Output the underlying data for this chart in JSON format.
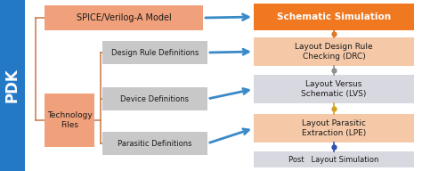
{
  "pdk_bar_color": "#2479c7",
  "pdk_text": "PDK",
  "spice_box_color": "#f0a07a",
  "tech_box_color": "#f0a07a",
  "spice_text": "SPICE/Verilog-A Model",
  "tech_text": "Technology\nFiles",
  "gray_box_color": "#c8c8c8",
  "drd_text": "Design Rule Definitions",
  "devd_text": "Device Definitions",
  "pard_text": "Parasitic Definitions",
  "orange_box_color": "#f07820",
  "peach_box_color": "#f5c9a8",
  "gray_right_color": "#d8d8e0",
  "schematic_text": "Schematic Simulation",
  "drc_text": "Layout Design Rule\nChecking (DRC)",
  "lvs_text": "Layout Versus\nSchematic (LVS)",
  "lpe_text": "Layout Parasitic\nExtraction (LPE)",
  "post_text": "Post   Layout Simulation",
  "arrow_color": "#3a8ac8",
  "bracket_color": "#c87848",
  "dot_orange": "#e07828",
  "dot_gray": "#909090",
  "dot_gold": "#d4a020",
  "dot_blue": "#3050b0",
  "fig_w": 4.74,
  "fig_h": 1.92,
  "dpi": 100
}
